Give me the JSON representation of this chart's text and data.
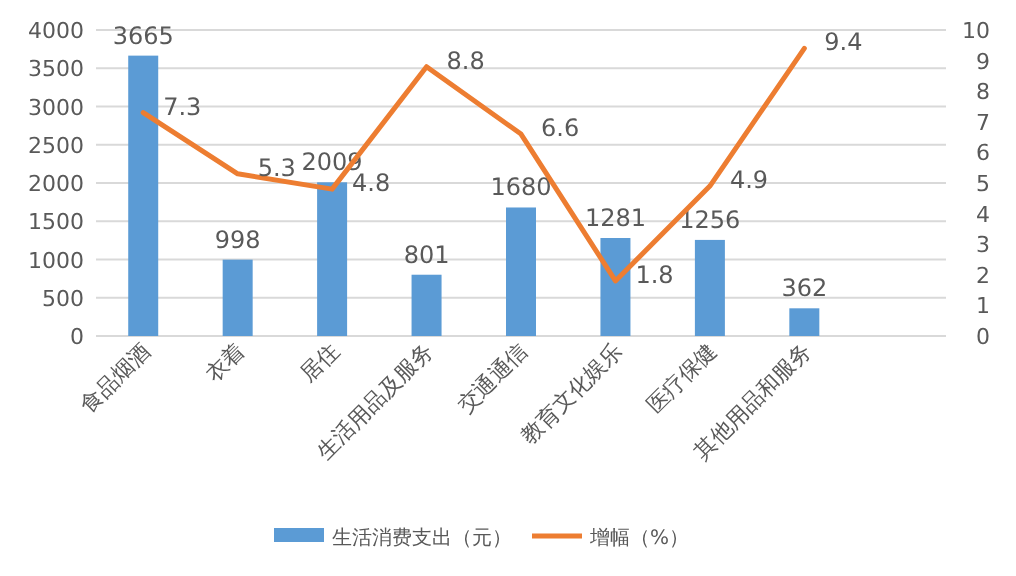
{
  "chart_data": {
    "type": "bar",
    "categories": [
      "食品烟酒",
      "衣着",
      "居住",
      "生活用品及服务",
      "交通通信",
      "教育文化娱乐",
      "医疗保健",
      "其他用品和服务",
      null
    ],
    "series": [
      {
        "name": "生活消费支出（元）",
        "color": "#5b9bd5",
        "values": [
          3665,
          998,
          2009,
          801,
          1680,
          1281,
          1256,
          362,
          null
        ]
      },
      {
        "name": "增幅（%）",
        "type": "line",
        "axis": "y2",
        "color": "#ed7d31",
        "values": [
          7.3,
          5.3,
          4.8,
          8.8,
          6.6,
          1.8,
          4.9,
          9.4,
          null
        ]
      }
    ],
    "ylim": [
      0,
      4000
    ],
    "yticks": [
      0,
      500,
      1000,
      1500,
      2000,
      2500,
      3000,
      3500,
      4000
    ],
    "y2lim": [
      0,
      10
    ],
    "y2ticks": [
      0,
      1,
      2,
      3,
      4,
      5,
      6,
      7,
      8,
      9,
      10
    ],
    "grid": "y",
    "legend": "bottom",
    "data_labels": true,
    "marker": "none",
    "line_style": "solid"
  }
}
